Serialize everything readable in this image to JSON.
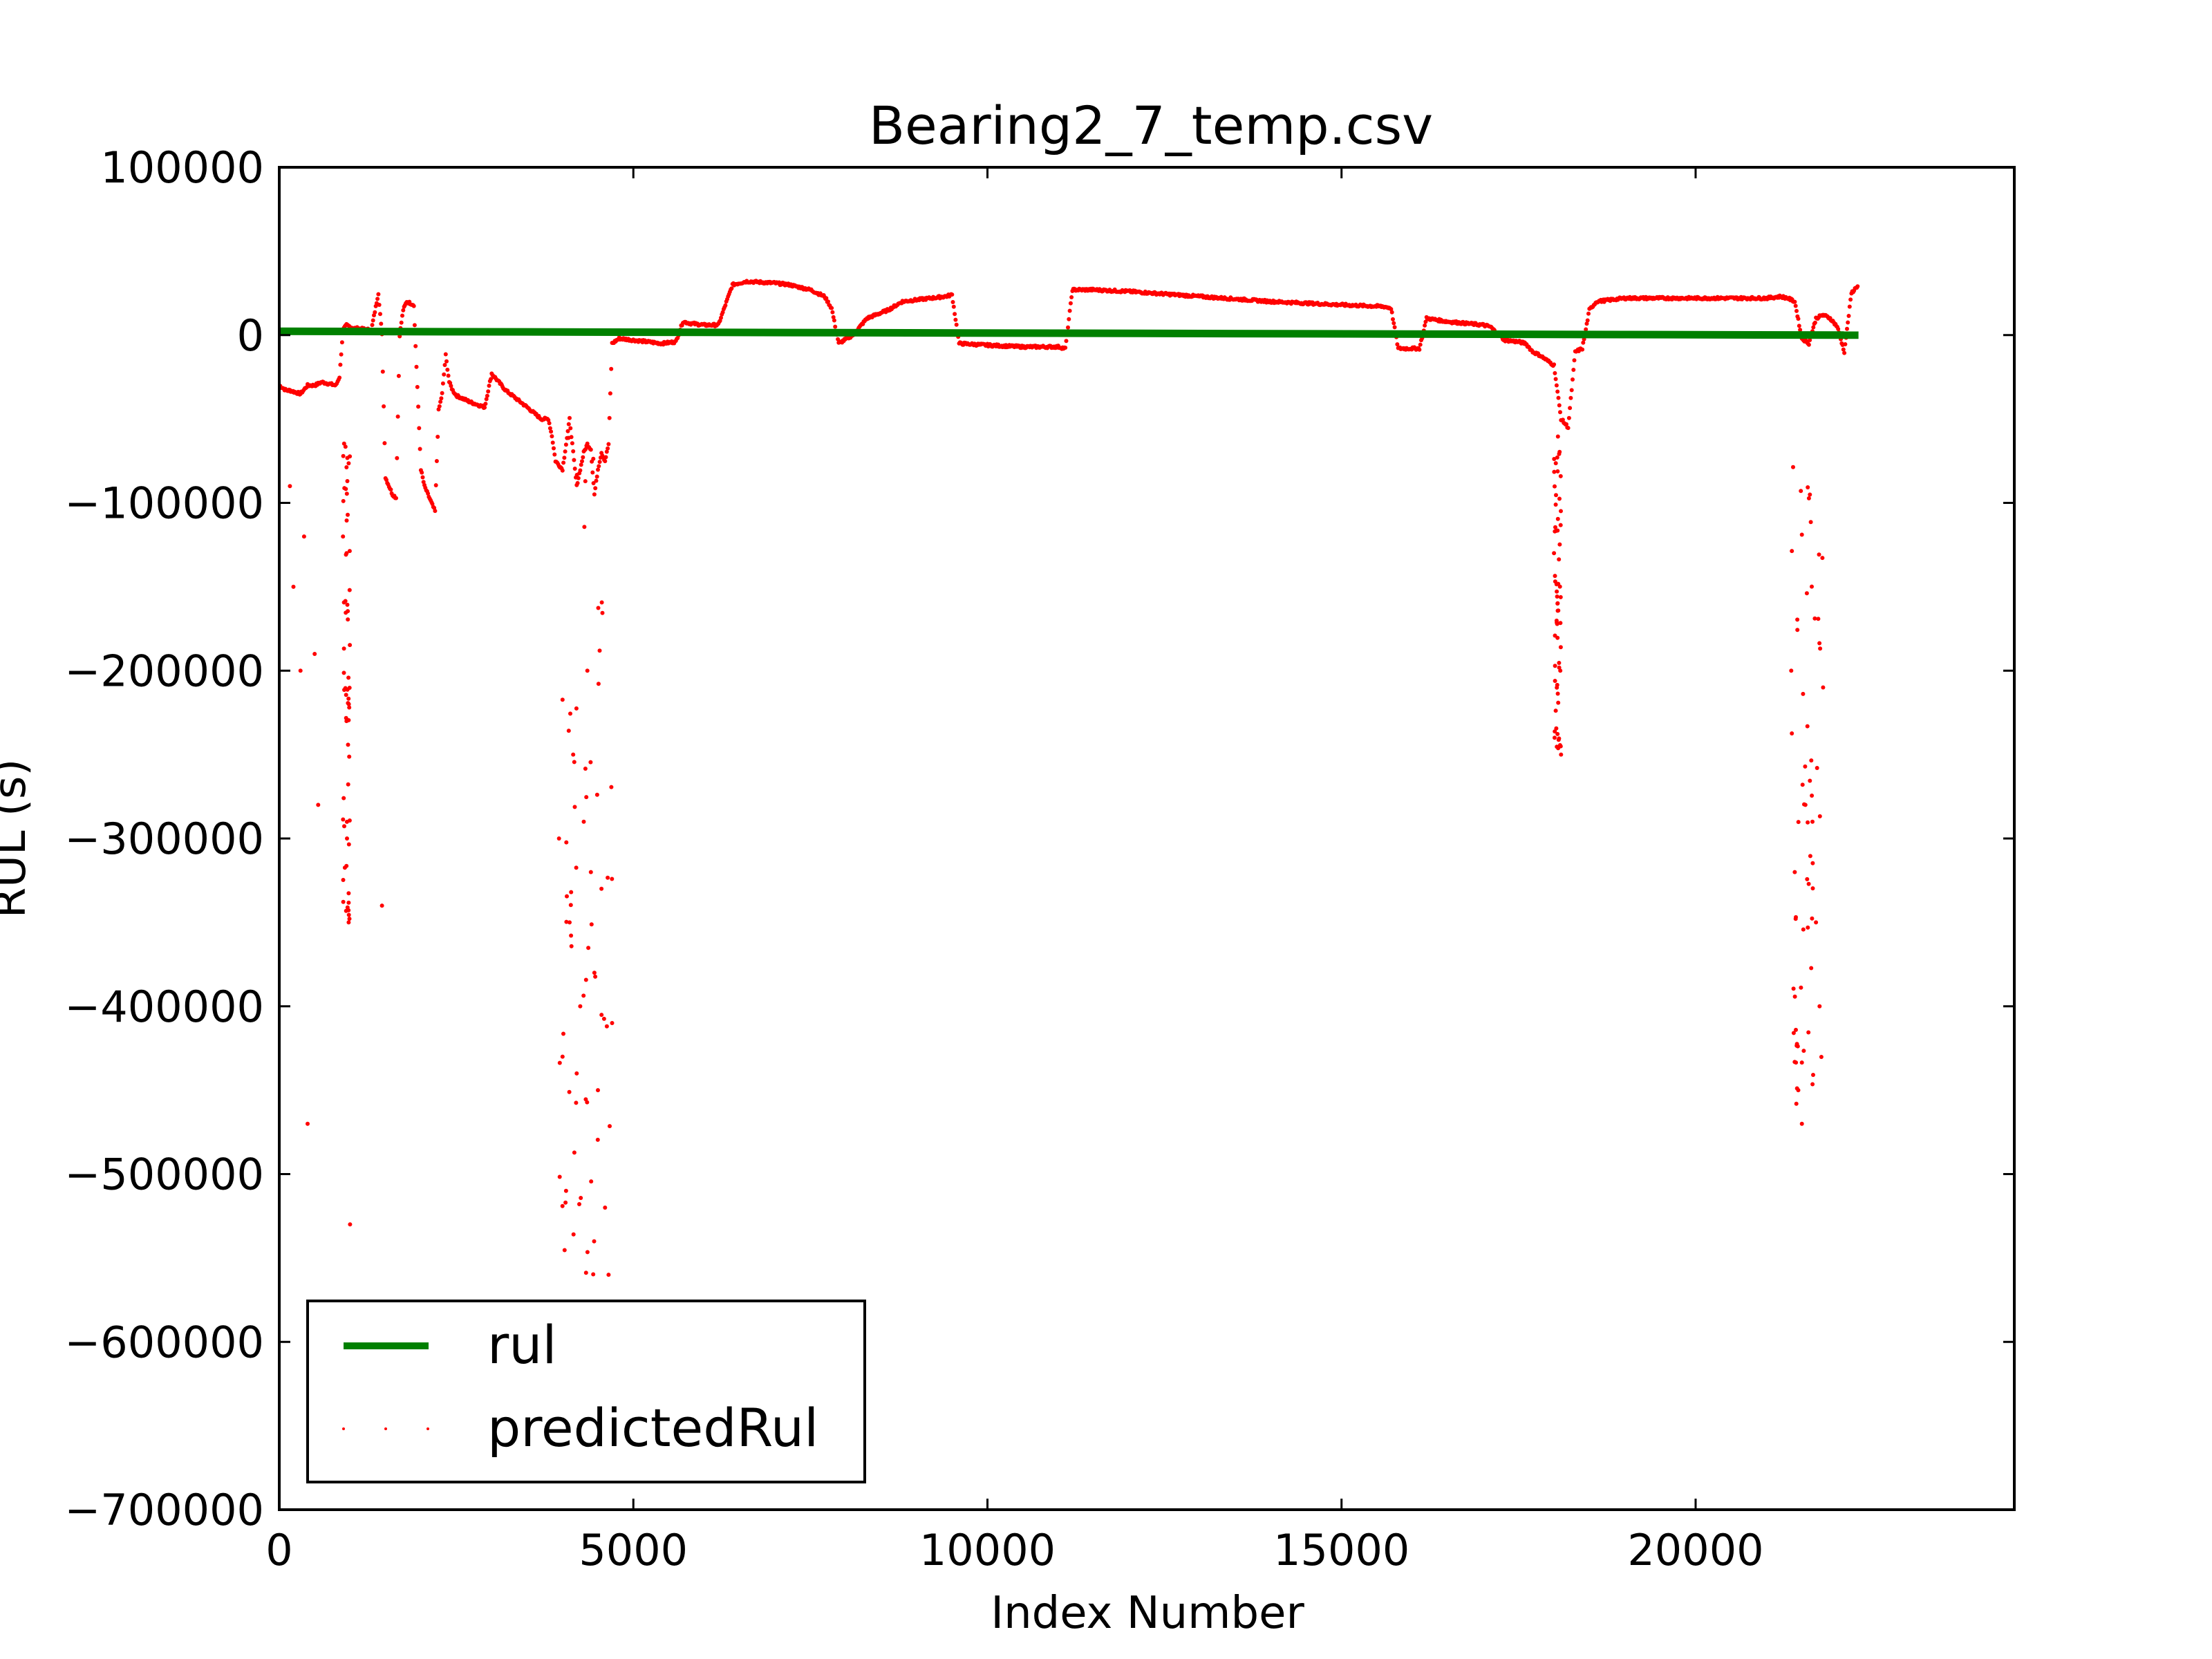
{
  "chart_data": {
    "type": "scatter",
    "title": "Bearing2_7_temp.csv",
    "xlabel": "Index Number",
    "ylabel": "RUL (s)",
    "xlim": [
      0,
      24500
    ],
    "ylim": [
      -700000,
      100000
    ],
    "xticks": [
      0,
      5000,
      10000,
      15000,
      20000
    ],
    "xtick_labels": [
      "0",
      "5000",
      "10000",
      "15000",
      "20000"
    ],
    "yticks": [
      100000,
      0,
      -100000,
      -200000,
      -300000,
      -400000,
      -500000,
      -600000,
      -700000
    ],
    "ytick_labels": [
      "100000",
      "0",
      "−100000",
      "−200000",
      "−300000",
      "−400000",
      "−500000",
      "−600000",
      "−700000"
    ],
    "grid": false,
    "legend": "lower-left",
    "colors": {
      "rul": "#008000",
      "predictedRul": "#ff0000"
    },
    "series": [
      {
        "name": "rul",
        "style": "line",
        "x": [
          0,
          22300
        ],
        "y": [
          2230,
          0
        ]
      },
      {
        "name": "predictedRul",
        "style": "points",
        "trend_x": [
          0,
          100,
          150,
          300,
          400,
          500,
          600,
          700,
          800,
          850,
          900,
          950,
          1000,
          1050,
          1100,
          1300,
          1400,
          1450,
          1500,
          1550,
          1600,
          1650,
          1700,
          1750,
          1800,
          1900,
          2000,
          2050,
          2100,
          2150,
          2200,
          2250,
          2300,
          2350,
          2400,
          2450,
          2500,
          2700,
          2900,
          3000,
          3200,
          3500,
          3700,
          3800,
          3850,
          3900,
          4000,
          4100,
          4200,
          4250,
          4300,
          4350,
          4400,
          4450,
          4500,
          4550,
          4600,
          4650,
          4700,
          4800,
          5000,
          5200,
          5400,
          5600,
          5700,
          5800,
          6000,
          6200,
          6300,
          6400,
          6600,
          7000,
          7200,
          7500,
          7700,
          7800,
          7900,
          8100,
          8300,
          8600,
          8800,
          9000,
          9200,
          9400,
          9500,
          9600,
          10000,
          10500,
          11000,
          11100,
          11200,
          11500,
          12000,
          13000,
          14000,
          15000,
          15600,
          15700,
          15800,
          16100,
          16200,
          16500,
          17000,
          17100,
          17300,
          17500,
          17600,
          17700,
          17800,
          17900,
          18000,
          18100,
          18200,
          18300,
          18400,
          18500,
          18600,
          19000,
          19500,
          20000,
          20500,
          21000,
          21200,
          21300,
          21400,
          21500,
          21600,
          21700,
          21800,
          21900,
          22000,
          22100,
          22200,
          22300
        ],
        "trend_y": [
          -30000,
          -33000,
          -33000,
          -35000,
          -30000,
          -30000,
          -28000,
          -29000,
          -30000,
          -25000,
          3000,
          6000,
          5000,
          4000,
          4000,
          3000,
          25000,
          0,
          -85000,
          -90000,
          -95000,
          -97000,
          0,
          15000,
          20000,
          18000,
          -80000,
          -90000,
          -95000,
          -100000,
          -105000,
          -45000,
          -35000,
          -12000,
          -28000,
          -33000,
          -36000,
          -40000,
          -43000,
          -23000,
          -33000,
          -43000,
          -50000,
          -50000,
          -60000,
          -75000,
          -80000,
          -50000,
          -90000,
          -80000,
          -70000,
          -65000,
          -68000,
          -95000,
          -80000,
          -70000,
          -75000,
          -65000,
          -5000,
          -2000,
          -3000,
          -4000,
          -5000,
          -4000,
          8000,
          7000,
          6000,
          6000,
          18000,
          30000,
          32000,
          31000,
          30000,
          27000,
          23000,
          16000,
          -5000,
          0,
          10000,
          15000,
          20000,
          21000,
          22000,
          23000,
          24000,
          -5000,
          -6000,
          -7000,
          -7000,
          -8000,
          27000,
          27000,
          26000,
          23000,
          20000,
          18000,
          17000,
          16000,
          -8000,
          -8000,
          10000,
          8000,
          6000,
          5000,
          -3000,
          -4000,
          -5000,
          -10000,
          -12000,
          -15000,
          -18000,
          -50000,
          -55000,
          -10000,
          -8000,
          15000,
          20000,
          22000,
          22000,
          22000,
          22000,
          22000,
          23000,
          22000,
          20000,
          -2000,
          -5000,
          10000,
          12000,
          10000,
          5000,
          -10000,
          25000,
          30000,
          34000,
          35000,
          33000
        ],
        "outliers_x": [
          150,
          200,
          300,
          350,
          400,
          500,
          550,
          900,
          950,
          980,
          1000,
          1450,
          3950,
          4000,
          4050,
          4100,
          4150,
          4200,
          4250,
          4300,
          4350,
          4400,
          4450,
          4500,
          4550,
          4600,
          4650,
          4700,
          18000,
          18050,
          18100,
          21350,
          21400,
          21450,
          21500,
          21550,
          21650,
          21700,
          21750,
          21800
        ],
        "outliers_y": [
          -90000,
          -150000,
          -200000,
          -120000,
          -470000,
          -190000,
          -280000,
          -120000,
          -230000,
          -350000,
          -530000,
          -340000,
          -300000,
          -430000,
          -510000,
          -350000,
          -250000,
          -440000,
          -400000,
          -290000,
          -200000,
          -320000,
          -380000,
          -450000,
          -330000,
          -520000,
          -560000,
          -410000,
          -130000,
          -160000,
          -250000,
          -200000,
          -320000,
          -450000,
          -470000,
          -280000,
          -290000,
          -350000,
          -400000,
          -210000
        ]
      }
    ]
  }
}
